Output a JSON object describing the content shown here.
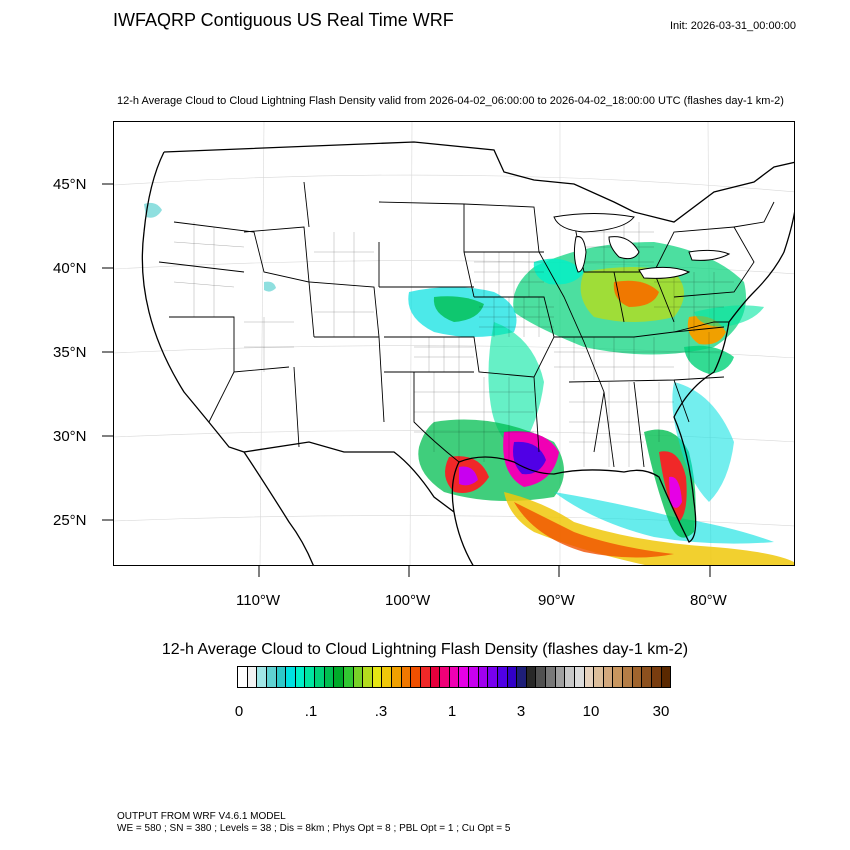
{
  "header": {
    "title": "IWFAQRP Contiguous US Real Time WRF",
    "init": "Init: 2026-03-31_00:00:00",
    "subtitle": "12-h Average Cloud to Cloud Lightning Flash Density valid from 2026-04-02_06:00:00 to 2026-04-02_18:00:00 UTC   (flashes day-1 km-2)"
  },
  "map": {
    "lat_labels": [
      "45°N",
      "40°N",
      "35°N",
      "30°N",
      "25°N"
    ],
    "lon_labels": [
      "110°W",
      "100°W",
      "90°W",
      "80°W"
    ]
  },
  "colorbar": {
    "title": "12-h Average Cloud to Cloud Lightning Flash Density  (flashes day-1 km-2)",
    "tick_labels": [
      "0",
      ".1",
      ".3",
      "1",
      "3",
      "10",
      "30"
    ],
    "colors": [
      "#ffffff",
      "#f2f2f2",
      "#a0e6e6",
      "#5fd2d2",
      "#2ec8c8",
      "#00e0e0",
      "#00f0c8",
      "#00e6a0",
      "#00d278",
      "#00be50",
      "#00aa2a",
      "#32c832",
      "#78d228",
      "#b4dc1e",
      "#e6e614",
      "#f0c80a",
      "#f0a000",
      "#f07800",
      "#f05000",
      "#f02828",
      "#e6003c",
      "#f00078",
      "#f000b4",
      "#e600e6",
      "#c800f0",
      "#a000f0",
      "#7800f0",
      "#5000e6",
      "#3200c8",
      "#1e1e78",
      "#282828",
      "#505050",
      "#787878",
      "#a0a0a0",
      "#c8c8c8",
      "#dcdcdc",
      "#e6d2be",
      "#dcbe9b",
      "#d2a87d",
      "#c8965f",
      "#b47d46",
      "#a0642d",
      "#8c501e",
      "#783c0f",
      "#5a2800"
    ]
  },
  "footer": {
    "line1": "OUTPUT FROM WRF V4.6.1 MODEL",
    "line2": "WE = 580 ; SN = 380 ; Levels = 38 ; Dis = 8km ; Phys Opt = 8 ; PBL Opt = 1 ; Cu Opt = 5"
  }
}
